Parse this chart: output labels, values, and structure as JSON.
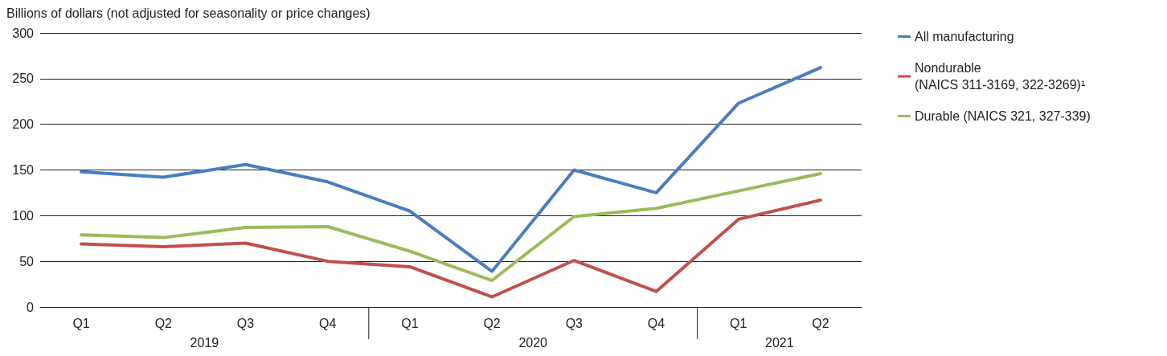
{
  "chart_data": {
    "type": "line",
    "ylabel": "Billions of dollars (not adjusted for seasonality or price changes)",
    "categories": [
      "Q1",
      "Q2",
      "Q3",
      "Q4",
      "Q1",
      "Q2",
      "Q3",
      "Q4",
      "Q1",
      "Q2"
    ],
    "annotations": [
      "2019",
      "2020",
      "2021"
    ],
    "ylim": [
      0,
      300
    ],
    "yticks": [
      0,
      50,
      100,
      150,
      200,
      250,
      300
    ],
    "grid": "y",
    "legend": "right",
    "marker": "none",
    "line_style": "solid",
    "series": [
      {
        "name": "All manufacturing",
        "color": "#4a7ebf",
        "values": [
          148,
          142,
          156,
          137,
          105,
          39,
          150,
          125,
          223,
          262
        ]
      },
      {
        "name": "Nondurable\n(NAICS 311-3169, 322-3269)¹",
        "color": "#c0504d",
        "values": [
          69,
          66,
          70,
          50,
          44,
          11,
          51,
          17,
          96,
          117
        ]
      },
      {
        "name": "Durable (NAICS 321, 327-339)",
        "color": "#9bbb59",
        "values": [
          79,
          76,
          87,
          88,
          61,
          29,
          99,
          108,
          127,
          146
        ]
      }
    ]
  }
}
